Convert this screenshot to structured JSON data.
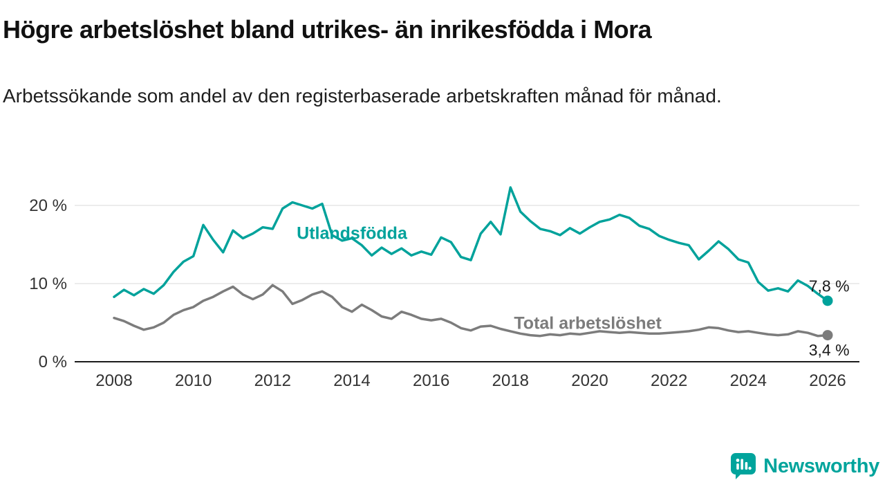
{
  "header": {
    "title": "Högre arbetslöshet bland utrikes- än inrikesfödda i Mora",
    "subtitle": "Arbetssökande som andel av den registerbaserade arbetskraften månad för månad."
  },
  "branding": {
    "name": "Newsworthy",
    "color": "#00a49c"
  },
  "colors": {
    "foreign_born_line": "#00a29b",
    "total_line": "#7c7c7c",
    "grid": "#d8d8d8",
    "axis": "#1a1a1a",
    "tick_text": "#333333",
    "end_label_text": "#1a1a1a"
  },
  "chart_data": {
    "type": "line",
    "title": "Högre arbetslöshet bland utrikes- än inrikesfödda i Mora",
    "xlabel": "",
    "ylabel": "Arbetssökande som andel av den registerbaserade arbetskraften",
    "x_start": 2008,
    "x_step": 0.25,
    "xlim": [
      2008,
      2026
    ],
    "ylim": [
      0,
      23
    ],
    "grid": true,
    "legend_position": "inline-annotations",
    "xticks": [
      2008,
      2010,
      2012,
      2014,
      2016,
      2018,
      2020,
      2022,
      2024,
      2026
    ],
    "yticks": [
      0,
      10,
      20
    ],
    "ytick_labels": [
      "0 %",
      "10 %",
      "20 %"
    ],
    "series": [
      {
        "name": "Utlandsfödda",
        "color": "#00a29b",
        "values": [
          8.3,
          9.2,
          8.5,
          9.3,
          8.7,
          9.8,
          11.5,
          12.8,
          13.5,
          17.5,
          15.6,
          14.0,
          16.8,
          15.8,
          16.4,
          17.2,
          17.0,
          19.6,
          20.4,
          20.0,
          19.6,
          20.2,
          16.2,
          15.5,
          15.8,
          14.9,
          13.6,
          14.6,
          13.8,
          14.5,
          13.6,
          14.1,
          13.7,
          15.9,
          15.3,
          13.4,
          13.0,
          16.4,
          17.9,
          16.3,
          22.3,
          19.2,
          18.0,
          17.0,
          16.7,
          16.2,
          17.1,
          16.4,
          17.2,
          17.9,
          18.2,
          18.8,
          18.4,
          17.4,
          17.0,
          16.1,
          15.6,
          15.2,
          14.9,
          13.1,
          14.2,
          15.4,
          14.4,
          13.1,
          12.7,
          10.2,
          9.1,
          9.4,
          9.0,
          10.4,
          9.7,
          8.7,
          7.8
        ]
      },
      {
        "name": "Total arbetslöshet",
        "color": "#7c7c7c",
        "values": [
          5.6,
          5.2,
          4.6,
          4.1,
          4.4,
          5.0,
          6.0,
          6.6,
          7.0,
          7.8,
          8.3,
          9.0,
          9.6,
          8.6,
          8.0,
          8.6,
          9.8,
          9.0,
          7.4,
          7.9,
          8.6,
          9.0,
          8.3,
          7.0,
          6.4,
          7.3,
          6.6,
          5.8,
          5.5,
          6.4,
          6.0,
          5.5,
          5.3,
          5.5,
          5.0,
          4.3,
          4.0,
          4.5,
          4.6,
          4.2,
          3.9,
          3.6,
          3.4,
          3.3,
          3.5,
          3.4,
          3.6,
          3.5,
          3.7,
          3.9,
          3.8,
          3.7,
          3.8,
          3.7,
          3.6,
          3.6,
          3.7,
          3.8,
          3.9,
          4.1,
          4.4,
          4.3,
          4.0,
          3.8,
          3.9,
          3.7,
          3.5,
          3.4,
          3.5,
          3.9,
          3.7,
          3.3,
          3.4
        ]
      }
    ],
    "annotations": [
      {
        "text": "Utlandsfödda",
        "x": 2014.0,
        "y": 16.5,
        "color": "#00a29b"
      },
      {
        "text": "Total arbetslöshet",
        "x": 2019.95,
        "y": 5.0,
        "color": "#7c7c7c"
      }
    ],
    "end_labels": [
      {
        "text": "7,8 %",
        "x": 2026.55,
        "y": 9.7,
        "series": 0
      },
      {
        "text": "3,4 %",
        "x": 2026.55,
        "y": 1.5,
        "series": 1
      }
    ]
  }
}
